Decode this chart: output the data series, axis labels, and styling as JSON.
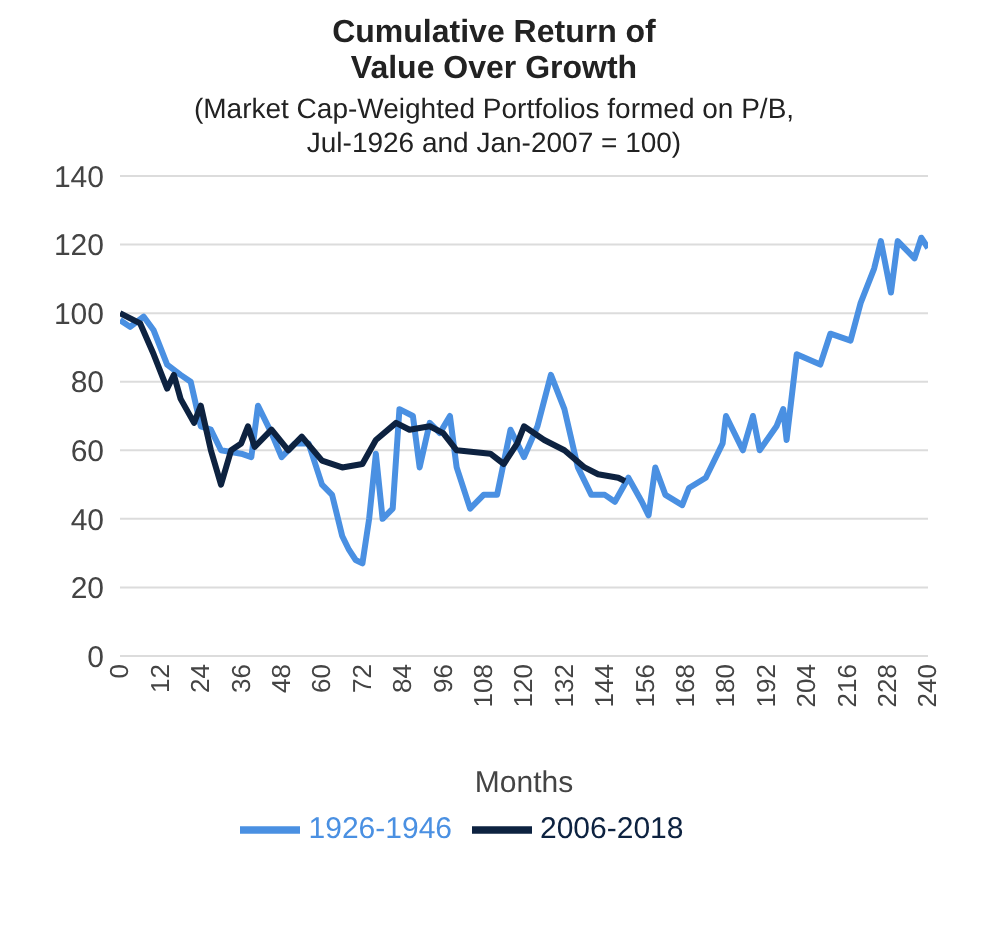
{
  "chart_data": {
    "type": "line",
    "title": "Cumulative Return of Value Over Growth",
    "subtitle": "(Market Cap-Weighted Portfolios formed on P/B, Jul-1926 and Jan-2007 = 100)",
    "xlabel": "Months",
    "xlim": [
      0,
      240
    ],
    "xticks": [
      0,
      12,
      24,
      36,
      48,
      60,
      72,
      84,
      96,
      108,
      120,
      132,
      144,
      156,
      168,
      180,
      192,
      204,
      216,
      228,
      240
    ],
    "ylim": [
      0,
      140
    ],
    "yticks": [
      0,
      20,
      40,
      60,
      80,
      100,
      120,
      140
    ],
    "grid": "y",
    "legend": "bottom",
    "marker": "none",
    "line_style": "solid",
    "series": [
      {
        "name": "1926-1946",
        "color": "#4a90e2",
        "x": [
          0,
          3,
          7,
          10,
          14,
          18,
          21,
          24,
          27,
          30,
          36,
          39,
          41,
          45,
          48,
          52,
          56,
          60,
          63,
          66,
          68,
          70,
          72,
          74,
          76,
          78,
          81,
          83,
          87,
          89,
          92,
          95,
          98,
          100,
          104,
          108,
          112,
          116,
          120,
          124,
          128,
          132,
          136,
          140,
          144,
          147,
          151,
          155,
          157,
          159,
          162,
          167,
          169,
          174,
          179,
          180,
          185,
          188,
          190,
          195,
          197,
          198,
          201,
          208,
          211,
          217,
          220,
          224,
          226,
          229,
          231,
          236,
          238,
          240
        ],
        "values": [
          98,
          96,
          99,
          95,
          85,
          82,
          80,
          67,
          66,
          60,
          59,
          58,
          73,
          65,
          58,
          62,
          62,
          50,
          47,
          35,
          31,
          28,
          27,
          40,
          59,
          40,
          43,
          72,
          70,
          55,
          68,
          65,
          70,
          55,
          43,
          47,
          47,
          66,
          58,
          67,
          82,
          72,
          55,
          47,
          47,
          45,
          52,
          45,
          41,
          55,
          47,
          44,
          49,
          52,
          62,
          70,
          60,
          70,
          60,
          67,
          72,
          63,
          88,
          85,
          94,
          92,
          103,
          113,
          121,
          106,
          121,
          116,
          122,
          119
        ]
      },
      {
        "name": "2006-2018",
        "color": "#0d2240",
        "x": [
          0,
          6,
          10,
          14,
          16,
          18,
          22,
          24,
          27,
          30,
          33,
          36,
          38,
          40,
          45,
          50,
          54,
          60,
          66,
          72,
          76,
          82,
          86,
          92,
          96,
          100,
          110,
          114,
          118,
          120,
          126,
          132,
          138,
          142,
          148,
          150
        ],
        "values": [
          100,
          97,
          88,
          78,
          82,
          75,
          68,
          73,
          60,
          50,
          60,
          62,
          67,
          61,
          66,
          60,
          64,
          57,
          55,
          56,
          63,
          68,
          66,
          67,
          65,
          60,
          59,
          56,
          62,
          67,
          63,
          60,
          55,
          53,
          52,
          51
        ]
      }
    ]
  }
}
